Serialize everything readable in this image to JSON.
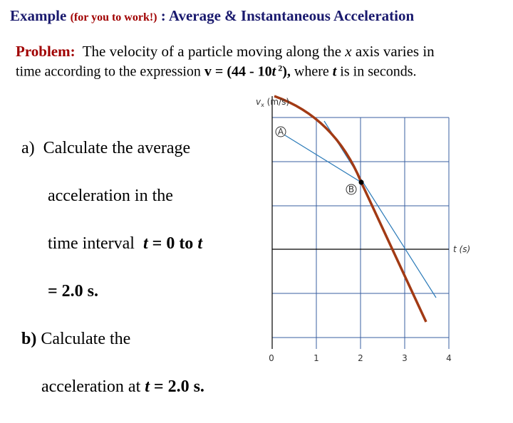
{
  "title": {
    "example": "Example",
    "note": "(for you to work!)",
    "rest": " : Average & Instantaneous Acceleration"
  },
  "problem": {
    "label": "Problem:",
    "line1": [
      "  The velocity of a particle moving along the ",
      "x",
      " axis varies in"
    ],
    "line2": [
      "time according to the expression ",
      "v = (44 - 10",
      "t",
      " 2",
      "), ",
      "where ",
      "t",
      " is in seconds."
    ]
  },
  "questions": {
    "a": {
      "marker": "a)",
      "lines": [
        "Calculate the average",
        "acceleration in the",
        "time interval  "
      ],
      "t1": "t",
      "mid": " = 0 to ",
      "t2": "t",
      "end": "= 2.0 s."
    },
    "b": {
      "marker": "b)",
      "lines": [
        " Calculate the",
        "acceleration at "
      ],
      "t": "t",
      "end": " = 2.0 s."
    }
  },
  "figure": {
    "y_label": "v",
    "y_sub": "x",
    "y_unit": " (m/s)",
    "x_label": "t (s)",
    "xticks": [
      0,
      1,
      2,
      3,
      4
    ],
    "points": [
      "A",
      "B"
    ]
  }
}
